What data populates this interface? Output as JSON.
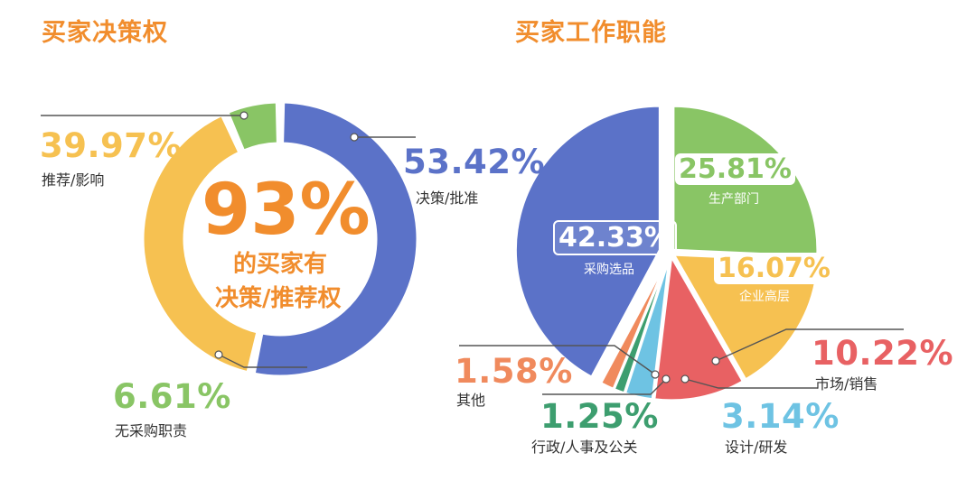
{
  "colors": {
    "orange": "#f18d2d",
    "blue": "#5b72c8",
    "yellow": "#f6c151",
    "green": "#89c565",
    "red": "#e86163",
    "sky": "#6ec3e3",
    "teal": "#3d9e6f",
    "coral": "#f08a5d"
  },
  "left": {
    "title": "买家决策权",
    "center_value": "93%",
    "center_line1": "的买家有",
    "center_line2": "决策/推荐权",
    "labels": [
      {
        "pct": "53.42%",
        "name": "决策/批准"
      },
      {
        "pct": "39.97%",
        "name": "推荐/影响"
      },
      {
        "pct": "6.61%",
        "name": "无采购职责"
      }
    ]
  },
  "right": {
    "title": "买家工作职能",
    "labels": [
      {
        "pct": "42.33%",
        "name": "采购选品"
      },
      {
        "pct": "25.81%",
        "name": "生产部门"
      },
      {
        "pct": "16.07%",
        "name": "企业高层"
      },
      {
        "pct": "10.22%",
        "name": "市场/销售"
      },
      {
        "pct": "3.14%",
        "name": "设计/研发"
      },
      {
        "pct": "1.25%",
        "name": "行政/人事及公关"
      },
      {
        "pct": "1.58%",
        "name": "其他"
      }
    ]
  },
  "chart_data": [
    {
      "type": "pie",
      "title": "买家决策权",
      "categories": [
        "决策/批准",
        "推荐/影响",
        "无采购职责"
      ],
      "values": [
        53.42,
        39.97,
        6.61
      ],
      "colors": [
        "#5b72c8",
        "#f6c151",
        "#89c565"
      ],
      "center_text": "93%",
      "center_subtitle": "的买家有决策/推荐权"
    },
    {
      "type": "pie",
      "title": "买家工作职能",
      "categories": [
        "采购选品",
        "生产部门",
        "企业高层",
        "市场/销售",
        "设计/研发",
        "行政/人事及公关",
        "其他"
      ],
      "values": [
        42.33,
        25.81,
        16.07,
        10.22,
        3.14,
        1.25,
        1.58
      ],
      "colors": [
        "#5b72c8",
        "#89c565",
        "#f6c151",
        "#e86163",
        "#6ec3e3",
        "#3d9e6f",
        "#f08a5d"
      ]
    }
  ]
}
